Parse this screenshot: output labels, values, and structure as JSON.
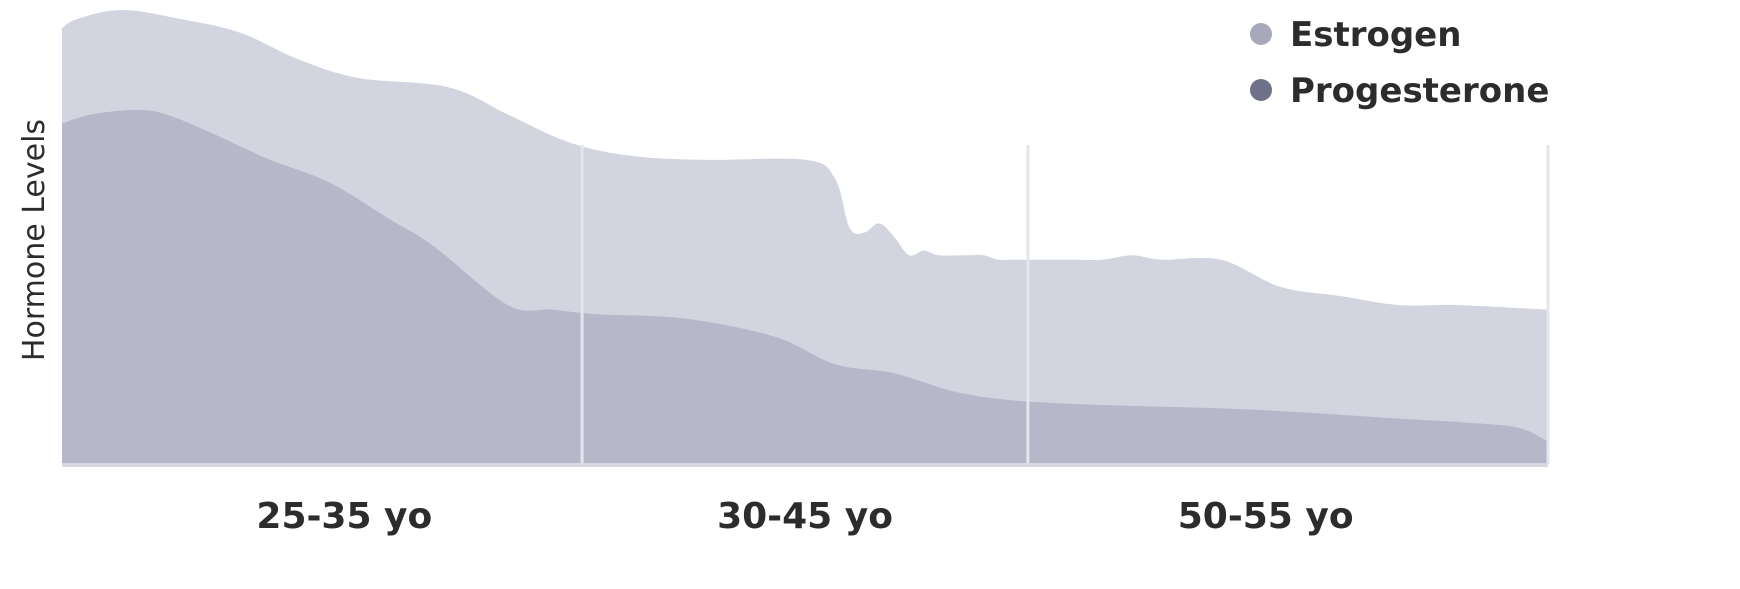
{
  "chart_data": {
    "type": "area",
    "ylabel": "Hormone Levels",
    "xlabel": "",
    "x_domain": [
      0,
      100
    ],
    "ylim": [
      0,
      100
    ],
    "grid": false,
    "legend_position": "top-right",
    "background_color": "#ffffff",
    "axis_color": "#d6d8df",
    "categories": [
      {
        "label": "25-35 yo",
        "center": 19
      },
      {
        "label": "30-45 yo",
        "center": 50
      },
      {
        "label": "50-55 yo",
        "center": 81
      }
    ],
    "dividers": [
      35,
      65
    ],
    "series": [
      {
        "name": "Estrogen",
        "color": "#d2d4df",
        "legend_color": "#a7a9bb",
        "points": [
          [
            0,
            96
          ],
          [
            1,
            98
          ],
          [
            4,
            100
          ],
          [
            8,
            98
          ],
          [
            12,
            95
          ],
          [
            16,
            89
          ],
          [
            20,
            85
          ],
          [
            26,
            83
          ],
          [
            30,
            77
          ],
          [
            34,
            71
          ],
          [
            38,
            68
          ],
          [
            43,
            67
          ],
          [
            50,
            67
          ],
          [
            52,
            63
          ],
          [
            53,
            52
          ],
          [
            54,
            51
          ],
          [
            55,
            53
          ],
          [
            56,
            50
          ],
          [
            57,
            46
          ],
          [
            58,
            47
          ],
          [
            59,
            46
          ],
          [
            61,
            46
          ],
          [
            62,
            46
          ],
          [
            63,
            45
          ],
          [
            64,
            45
          ],
          [
            66,
            45
          ],
          [
            68,
            45
          ],
          [
            70,
            45
          ],
          [
            72,
            46
          ],
          [
            74,
            45
          ],
          [
            78,
            45
          ],
          [
            82,
            39
          ],
          [
            86,
            37
          ],
          [
            90,
            35
          ],
          [
            94,
            35
          ],
          [
            100,
            34
          ]
        ]
      },
      {
        "name": "Progesterone",
        "color": "#b6b7c8",
        "legend_color": "#6f7189",
        "points": [
          [
            0,
            75
          ],
          [
            2,
            77
          ],
          [
            5,
            78
          ],
          [
            7,
            77
          ],
          [
            10,
            73
          ],
          [
            14,
            67
          ],
          [
            18,
            62
          ],
          [
            22,
            54
          ],
          [
            25,
            48
          ],
          [
            30,
            35
          ],
          [
            33,
            34
          ],
          [
            36,
            33
          ],
          [
            42,
            32
          ],
          [
            48,
            28
          ],
          [
            52,
            22
          ],
          [
            56,
            20
          ],
          [
            60,
            16
          ],
          [
            64,
            14
          ],
          [
            70,
            13
          ],
          [
            80,
            12
          ],
          [
            90,
            10
          ],
          [
            95,
            9
          ],
          [
            98,
            8
          ],
          [
            100,
            5
          ]
        ]
      }
    ]
  }
}
